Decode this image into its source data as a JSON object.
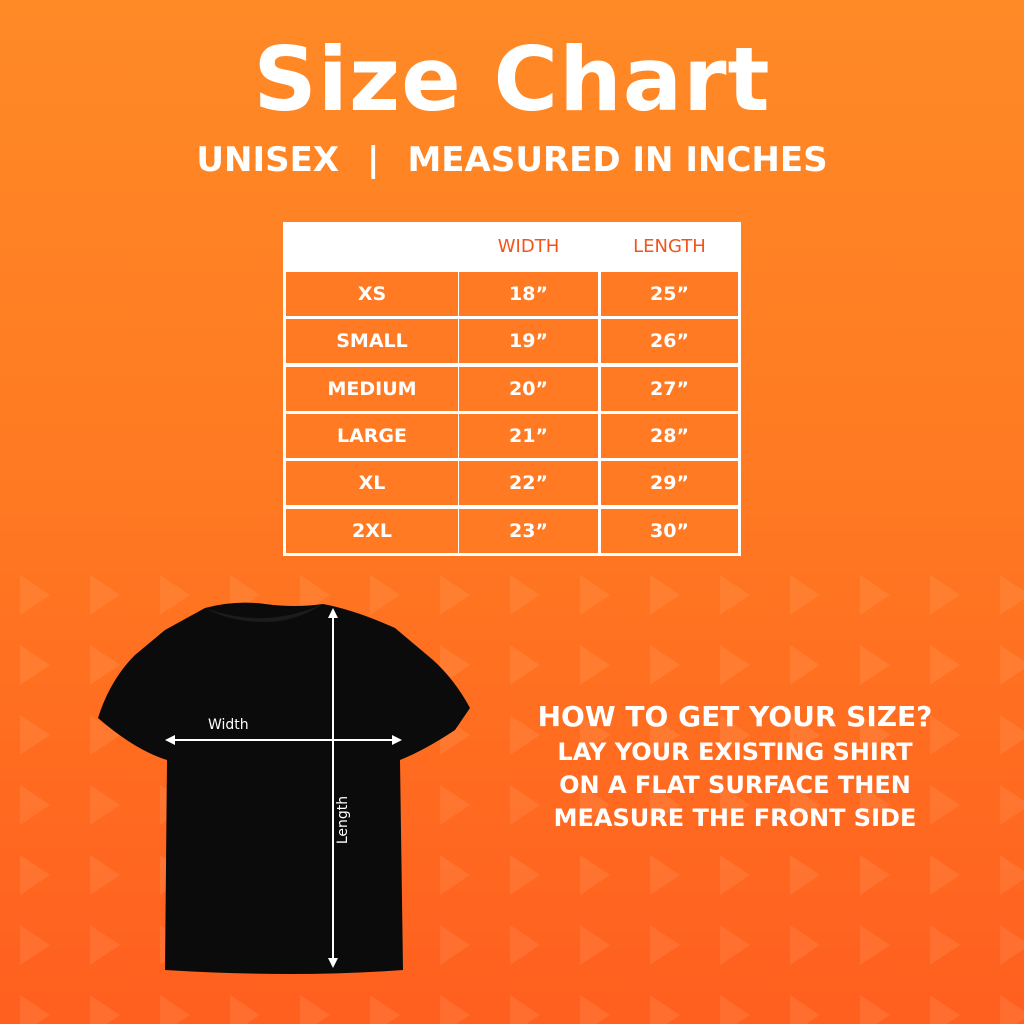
{
  "title": "Size Chart",
  "subtitle": {
    "left": "UNISEX",
    "separator": "|",
    "right": "MEASURED IN INCHES"
  },
  "table": {
    "headers": [
      "",
      "WIDTH",
      "LENGTH"
    ],
    "rows": [
      [
        "XS",
        "18”",
        "25”"
      ],
      [
        "SMALL",
        "19”",
        "26”"
      ],
      [
        "MEDIUM",
        "20”",
        "27”"
      ],
      [
        "LARGE",
        "21”",
        "28”"
      ],
      [
        "XL",
        "22”",
        "29”"
      ],
      [
        "2XL",
        "23”",
        "30”"
      ]
    ]
  },
  "shirt": {
    "width_label": "Width",
    "length_label": "Length"
  },
  "instructions": {
    "heading": "HOW TO GET YOUR SIZE?",
    "lines": [
      "LAY YOUR EXISTING SHIRT",
      "ON A FLAT SURFACE THEN",
      "MEASURE THE FRONT SIDE"
    ]
  },
  "colors": {
    "accent": "#ff7a22",
    "header_text": "#f2541b",
    "background_top": "#ff8a26",
    "background_bottom": "#ff5f1f"
  }
}
